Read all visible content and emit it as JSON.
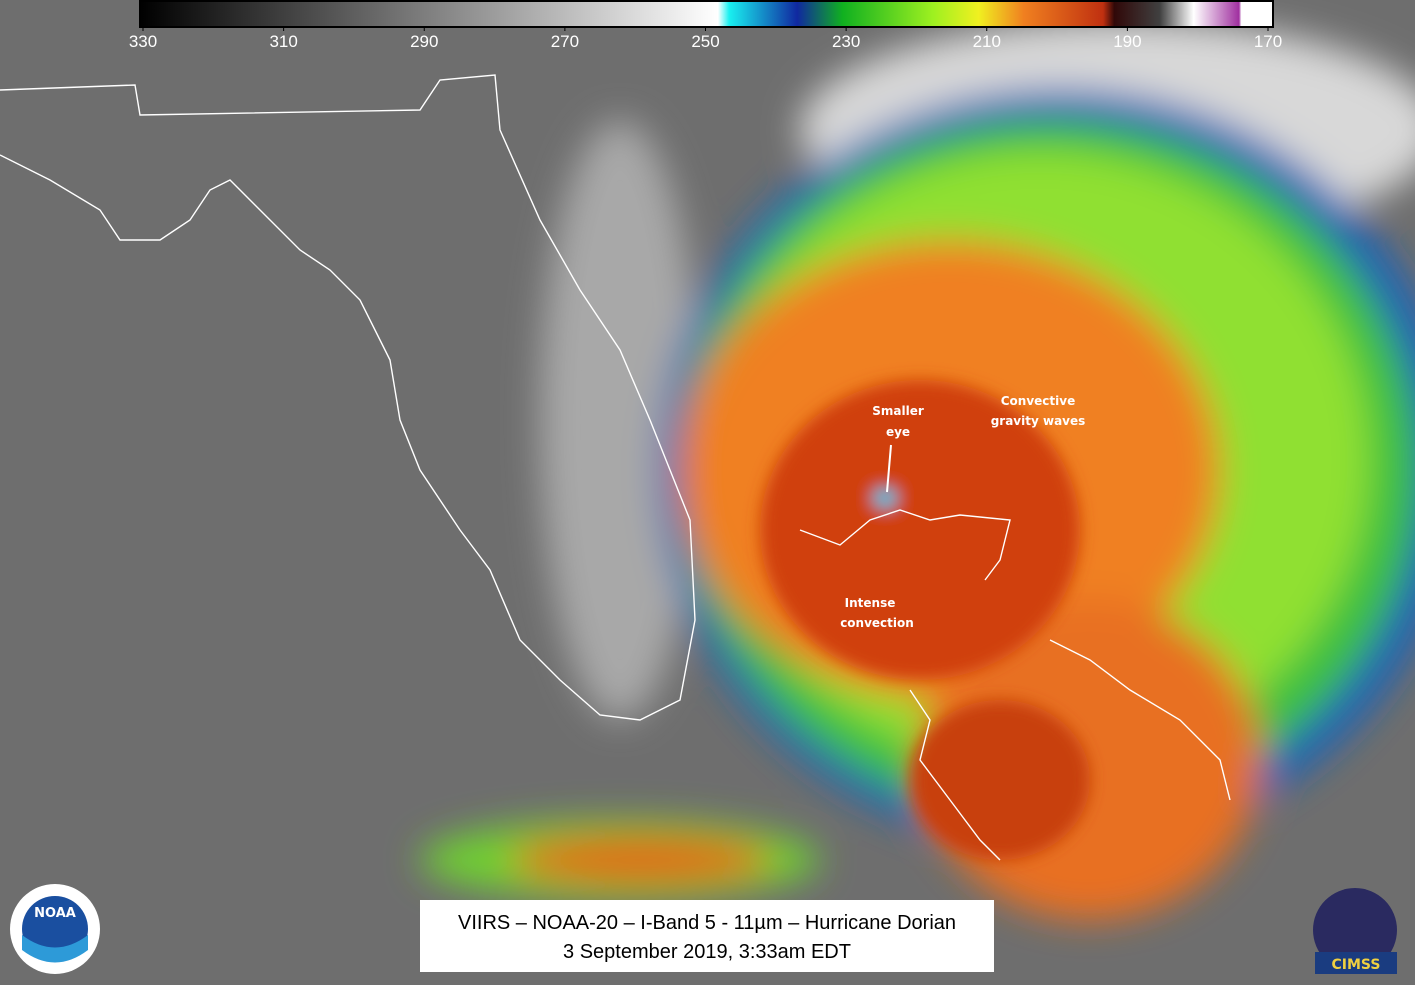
{
  "colorbar": {
    "lim": [
      330,
      170
    ],
    "ticks": [
      330,
      310,
      290,
      270,
      250,
      230,
      210,
      190,
      170
    ]
  },
  "annotations": {
    "eye": [
      "Smaller",
      "eye"
    ],
    "waves": [
      "Convective",
      "gravity waves"
    ],
    "convection": [
      "Intense",
      "convection"
    ]
  },
  "caption": [
    "VIIRS – NOAA-20 – I-Band 5 - 11µm – Hurricane Dorian",
    "3 September 2019, 3:33am EDT"
  ],
  "logos": {
    "left": "NOAA",
    "right": "CIMSS"
  }
}
